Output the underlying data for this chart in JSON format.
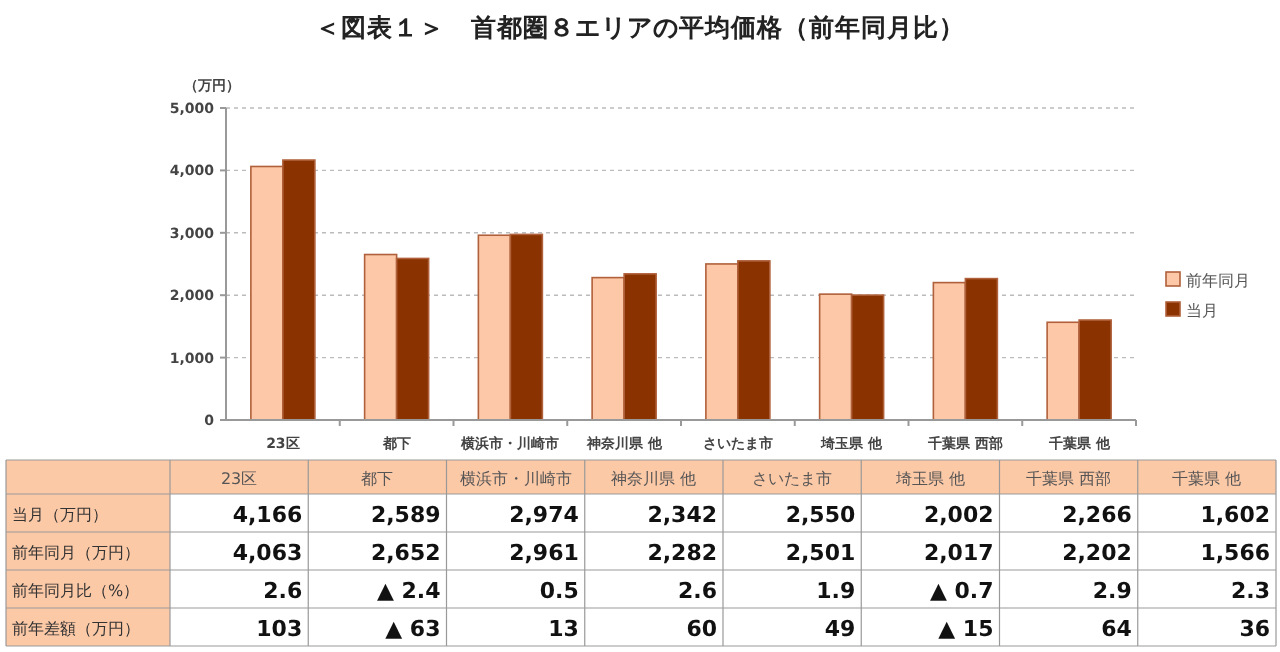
{
  "chart_data": {
    "type": "bar",
    "title": "＜図表１＞　首都圏８エリアの平均価格（前年同月比）",
    "ylabel": "（万円）",
    "categories": [
      "23区",
      "都下",
      "横浜市・川崎市",
      "神奈川県 他",
      "さいたま市",
      "埼玉県 他",
      "千葉県 西部",
      "千葉県 他"
    ],
    "series": [
      {
        "name": "前年同月",
        "color": "#fdc8a8",
        "values": [
          4063,
          2652,
          2961,
          2282,
          2501,
          2017,
          2202,
          1566
        ]
      },
      {
        "name": "当月",
        "color": "#8b3300",
        "values": [
          4166,
          2589,
          2974,
          2342,
          2550,
          2002,
          2266,
          1602
        ]
      }
    ],
    "ylim": [
      0,
      5000
    ],
    "yticks": [
      0,
      {
        "value": 1000,
        "label": "1,000"
      },
      {
        "value": 2000,
        "label": "2,000"
      },
      {
        "value": 3000,
        "label": "3,000"
      },
      {
        "value": 4000,
        "label": "4,000"
      },
      {
        "value": 5000,
        "label": "5,000"
      }
    ],
    "grid": "y",
    "legend": "right",
    "annotations": [
      "当月（万円）",
      "前年同月（万円）",
      "前年同月比（%）",
      "前年差額（万円）",
      "4,166",
      "2,589",
      "2,974",
      "2,342",
      "2,550",
      "2,002",
      "2,266",
      "1,602",
      "4,063",
      "2,652",
      "2,961",
      "2,282",
      "2,501",
      "2,017",
      "2,202",
      "1,566",
      "2.6",
      "▲ 2.4",
      "0.5",
      "2.6",
      "1.9",
      "▲ 0.7",
      "2.9",
      "2.3",
      "103",
      "▲ 63",
      "13",
      "60",
      "49",
      "▲ 15",
      "64",
      "36"
    ]
  }
}
